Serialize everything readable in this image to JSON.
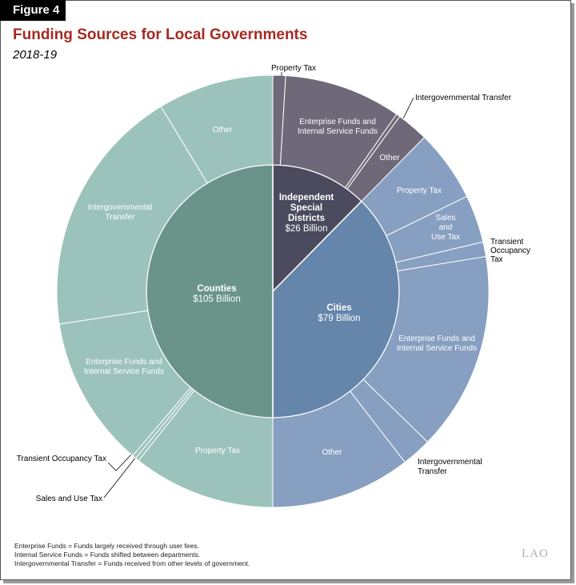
{
  "figure_label": "Figure 4",
  "chart_data": {
    "type": "sunburst",
    "title": "Funding Sources for Local Governments",
    "subtitle": "2018-19",
    "units": "Billion",
    "inner": [
      {
        "name": "Independent Special Districts",
        "label_lines": [
          "Independent",
          "Special",
          "Districts"
        ],
        "value_label": "$26 Billion",
        "value": 26,
        "color": "#4b4a5e",
        "children": [
          {
            "name": "Property Tax",
            "value": 2.0
          },
          {
            "name": "Enterprise Funds and Internal Service Funds",
            "value": 18.4
          },
          {
            "name": "Intergovernmental Transfer",
            "value": 0.6
          },
          {
            "name": "Other",
            "value": 5.0
          }
        ],
        "child_color": "#6e6879"
      },
      {
        "name": "Cities",
        "label_lines": [
          "Cities"
        ],
        "value_label": "$79 Billion",
        "value": 79,
        "color": "#6585ab",
        "children": [
          {
            "name": "Property Tax",
            "value": 11.3
          },
          {
            "name": "Sales and Use Tax",
            "value": 7.5
          },
          {
            "name": "Transient Occupancy Tax",
            "value": 2.3
          },
          {
            "name": "Enterprise Funds and Internal Service Funds",
            "value": 31.2
          },
          {
            "name": "Intergovernmental Transfer",
            "value": 4.7
          },
          {
            "name": "Other",
            "value": 22.0
          }
        ],
        "child_color": "#879fc0"
      },
      {
        "name": "Counties",
        "label_lines": [
          "Counties"
        ],
        "value_label": "$105 Billion",
        "value": 105,
        "color": "#6a948a",
        "children": [
          {
            "name": "Property Tax",
            "value": 22.4
          },
          {
            "name": "Sales and Use Tax",
            "value": 0.6
          },
          {
            "name": "Transient Occupancy Tax",
            "value": 0.6
          },
          {
            "name": "Enterprise Funds and Internal Service Funds",
            "value": 23.8
          },
          {
            "name": "Intergovernmental Transfer",
            "value": 39.4
          },
          {
            "name": "Other",
            "value": 18.2
          }
        ],
        "child_color": "#9cc3bb"
      }
    ]
  },
  "notes": [
    "Enterprise Funds = Funds largely received through user fees.",
    "Internal Service Funds = Funds shifted between departments.",
    "Intergovernmental Transfer = Funds received from other levels of government."
  ],
  "logo": "LAO"
}
